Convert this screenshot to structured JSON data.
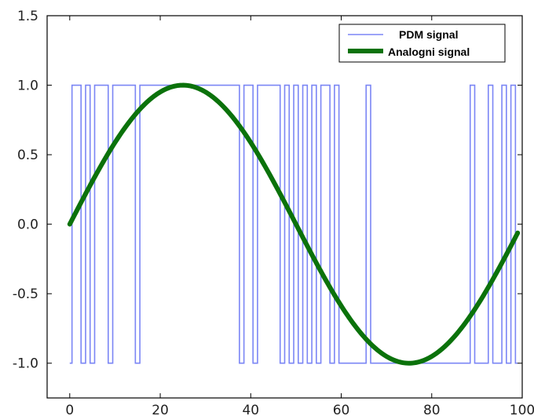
{
  "chart_data": {
    "type": "line",
    "title": "",
    "xlabel": "",
    "ylabel": "",
    "xlim": [
      -5,
      100
    ],
    "ylim": [
      -1.25,
      1.5
    ],
    "x_ticks": [
      0,
      20,
      40,
      60,
      80,
      100
    ],
    "x_tick_labels": [
      "0",
      "20",
      "40",
      "60",
      "80",
      "100"
    ],
    "y_ticks": [
      1.5,
      1.0,
      0.5,
      0.0,
      -0.5,
      -1.0
    ],
    "y_tick_labels": [
      "1.5",
      "1.0",
      "0.5",
      "0.0",
      "-0.5",
      "-1.0"
    ],
    "grid": false,
    "legend_position": "top-right",
    "series": [
      {
        "name": "PDM signal",
        "color": "#7b86f5",
        "style": "step",
        "x": [
          0,
          0.5,
          2.5,
          3.5,
          4.5,
          5.5,
          8.5,
          9.5,
          14.5,
          15.5,
          37.5,
          38.5,
          40.5,
          41.5,
          46.5,
          47.5,
          48.5,
          49.5,
          50.5,
          51.5,
          52.5,
          53.5,
          54.5,
          55.5,
          57.5,
          58.5,
          59.5,
          65.5,
          66.5,
          88.5,
          89.5,
          92.5,
          93.5,
          95.5,
          96.5,
          97.5,
          98.5,
          99
        ],
        "y": [
          -1,
          1,
          -1,
          1,
          -1,
          1,
          -1,
          1,
          -1,
          1,
          -1,
          1,
          -1,
          1,
          -1,
          1,
          -1,
          1,
          -1,
          1,
          -1,
          1,
          -1,
          1,
          -1,
          1,
          -1,
          1,
          -1,
          1,
          -1,
          1,
          -1,
          1,
          -1,
          1,
          -1,
          -1
        ]
      },
      {
        "name": "Analogni signal",
        "color": "#0b720b",
        "style": "line",
        "function": "sin(2*pi*x/100)",
        "x_start": 0,
        "x_end": 99
      }
    ]
  }
}
